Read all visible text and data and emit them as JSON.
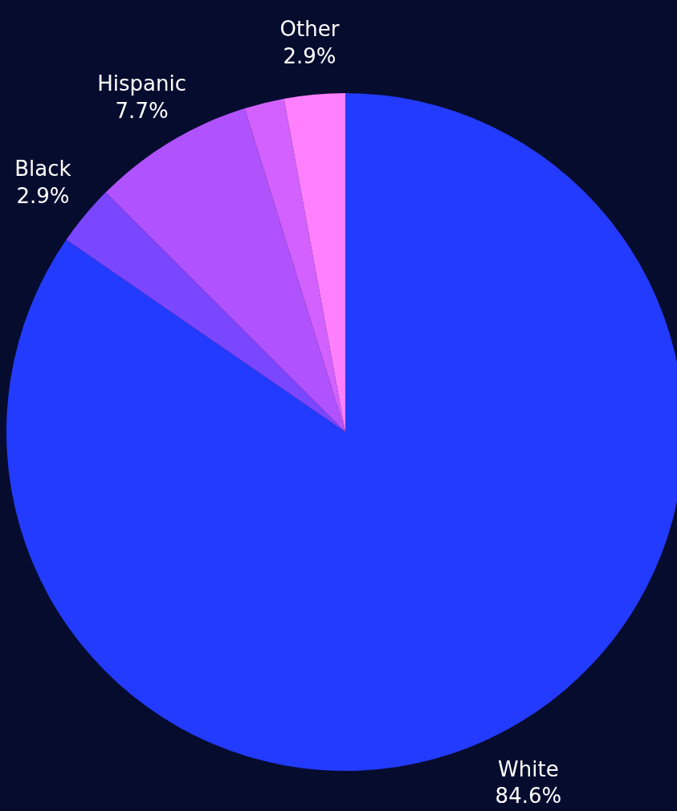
{
  "chart_data": {
    "type": "pie",
    "categories": [
      "White",
      "Black",
      "Hispanic",
      null,
      "Other"
    ],
    "values": [
      84.6,
      2.9,
      7.7,
      1.9,
      2.9
    ],
    "colors": [
      "#233bff",
      "#7b46ff",
      "#b053ff",
      "#d261ff",
      "#ff80ff"
    ],
    "value_labels": [
      "84.6%",
      "2.9%",
      "7.7%",
      null,
      "2.9%"
    ]
  }
}
